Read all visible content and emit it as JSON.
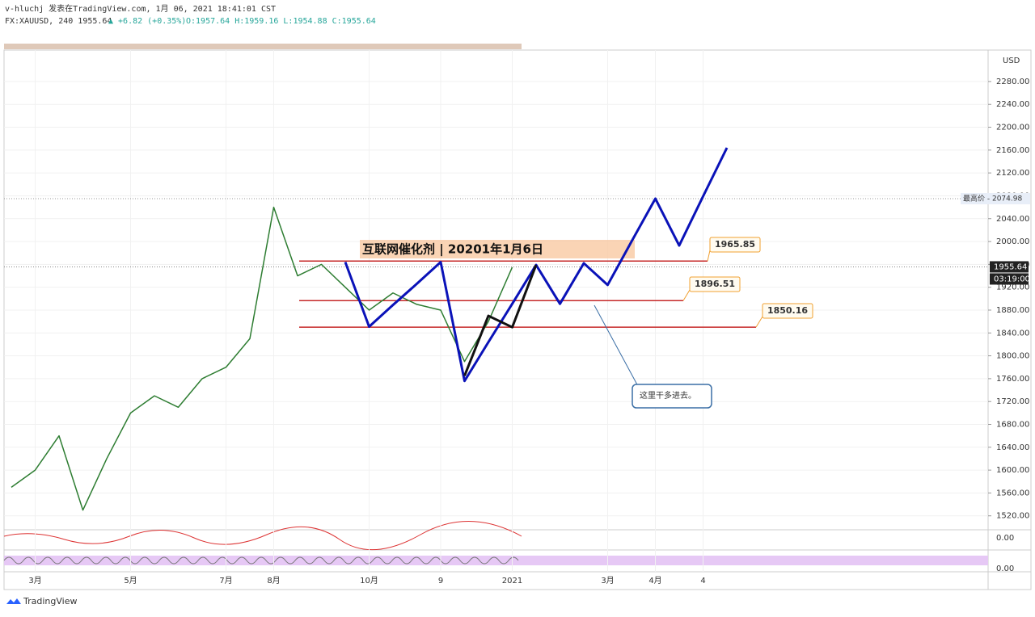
{
  "header": {
    "line1": "v-hluchj 发表在TradingView.com, 1月 06, 2021 18:41:01 CST",
    "symbol": "FX:XAUUSD, 240 1955.64",
    "change": "▲ +6.82 (+0.35%)",
    "ohlc": "O:1957.64 H:1959.16 L:1954.88 C:1955.64"
  },
  "chart_data": {
    "type": "line",
    "categories": [
      null,
      "3月",
      null,
      null,
      null,
      "5月",
      null,
      null,
      null,
      "7月",
      null,
      "8月",
      null,
      null,
      null,
      "10月",
      null,
      null,
      "9",
      null,
      null,
      "2021",
      null,
      null,
      null,
      "3月",
      null,
      "4月",
      null,
      "4",
      null
    ],
    "series": [
      {
        "color": "#2e7d32",
        "values": [
          1570,
          1600,
          1660,
          1530,
          1620,
          1700,
          1730,
          1710,
          1760,
          1780,
          1830,
          2060,
          1940,
          1960,
          1920,
          1880,
          1910,
          1890,
          1880,
          1790,
          1860,
          1955,
          null,
          null,
          null,
          null,
          null,
          null,
          null,
          null,
          null
        ]
      },
      {
        "color": "#0a12b8",
        "values": [
          null,
          null,
          null,
          null,
          null,
          null,
          null,
          null,
          null,
          null,
          null,
          null,
          null,
          null,
          1964,
          1851,
          1889,
          1926,
          1964,
          1756,
          1824,
          1891,
          1959,
          1891,
          1962,
          1924,
          2000,
          2075,
          1993,
          2079,
          2164
        ]
      },
      {
        "color": "#111111",
        "values": [
          null,
          null,
          null,
          null,
          null,
          null,
          null,
          null,
          null,
          null,
          null,
          null,
          null,
          null,
          null,
          null,
          null,
          null,
          null,
          1765,
          1870,
          1850,
          1959,
          null,
          null,
          null,
          null,
          null,
          null,
          null,
          null
        ]
      }
    ],
    "ylim": [
      1497,
      2335
    ],
    "yticks": [
      {
        "value": 1520,
        "label": "1520.00"
      },
      {
        "value": 1560,
        "label": "1560.00"
      },
      {
        "value": 1600,
        "label": "1600.00"
      },
      {
        "value": 1640,
        "label": "1640.00"
      },
      {
        "value": 1680,
        "label": "1680.00"
      },
      {
        "value": 1720,
        "label": "1720.00"
      },
      {
        "value": 1760,
        "label": "1760.00"
      },
      {
        "value": 1800,
        "label": "1800.00"
      },
      {
        "value": 1840,
        "label": "1840.00"
      },
      {
        "value": 1880,
        "label": "1880.00"
      },
      {
        "value": 1920,
        "label": "1920.00"
      },
      {
        "value": 1960,
        "label": "1960.00"
      },
      {
        "value": 2000,
        "label": "2000.00"
      },
      {
        "value": 2040,
        "label": "2040.00"
      },
      {
        "value": 2080,
        "label": "2080.00"
      },
      {
        "value": 2120,
        "label": "2120.00"
      },
      {
        "value": 2160,
        "label": "2160.00"
      },
      {
        "value": 2200,
        "label": "2200.00"
      },
      {
        "value": 2240,
        "label": "2240.00"
      },
      {
        "value": 2280,
        "label": "2280.00"
      }
    ],
    "grid": true,
    "currency": "USD",
    "levels": [
      1965.85,
      1896.51,
      1850.16
    ],
    "last_price": 1955.64,
    "countdown": "03:19:00",
    "high": {
      "value": 2074.98,
      "label": "最高价 - 2074.98"
    },
    "indicator_ticks": [
      {
        "value": 0,
        "label": "0.00"
      },
      {
        "value": 0,
        "label": "0.00"
      }
    ],
    "annotation_title": "互联网催化剂 | 20201年1月6日",
    "callout": "这里干多进去。"
  },
  "footer": {
    "logo": "TradingView"
  }
}
